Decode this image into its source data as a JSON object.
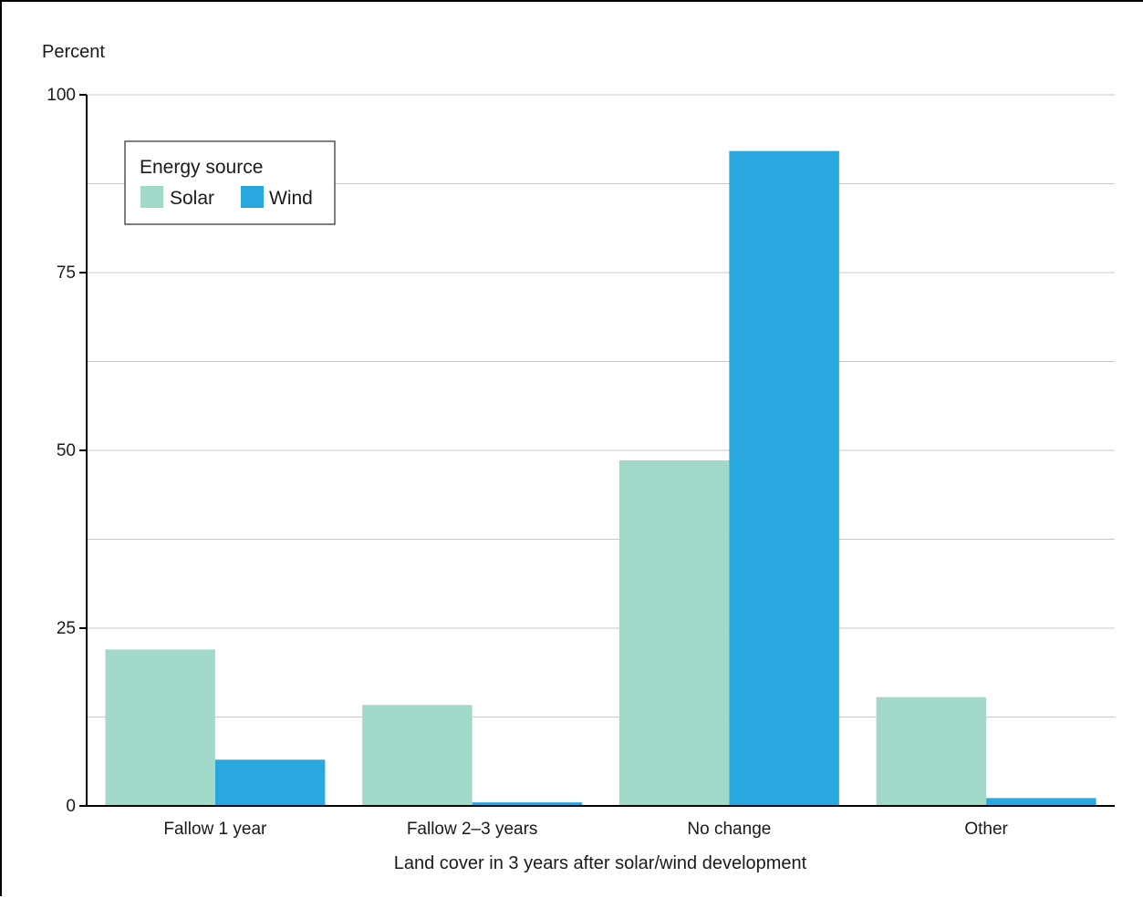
{
  "chart_data": {
    "type": "bar",
    "title": "",
    "ylabel": "Percent",
    "xlabel": "Land cover in 3 years after solar/wind development",
    "categories": [
      "Fallow 1 year",
      "Fallow 2–3 years",
      "No change",
      "Other"
    ],
    "series": [
      {
        "name": "Solar",
        "color": "#a3d9cb",
        "values": [
          22.0,
          14.2,
          48.6,
          15.3
        ]
      },
      {
        "name": "Wind",
        "color": "#29a8e0",
        "values": [
          6.5,
          0.5,
          92.1,
          1.1
        ]
      }
    ],
    "ylim": [
      0,
      100
    ],
    "yticks": [
      0,
      25,
      50,
      75,
      100
    ],
    "yticks_labeled": [
      0,
      25,
      50,
      75,
      100
    ],
    "gridlines": [
      12.5,
      25,
      37.5,
      50,
      62.5,
      75,
      87.5,
      100
    ],
    "grid": true,
    "legend": {
      "title": "Energy source",
      "placement": "top-left"
    }
  }
}
